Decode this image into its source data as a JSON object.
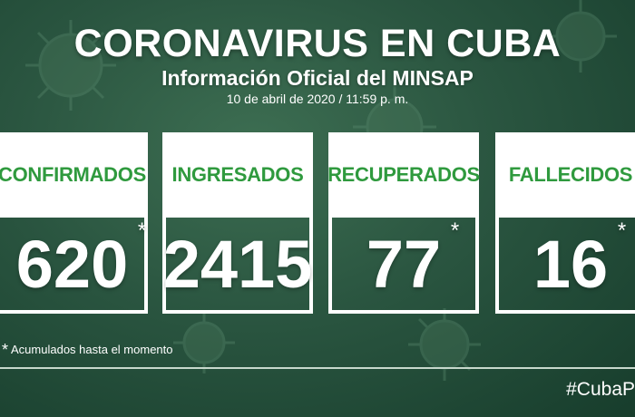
{
  "header": {
    "title": "CORONAVIRUS EN CUBA",
    "subtitle": "Información Oficial del MINSAP",
    "date": "10 de abril de 2020 / 11:59 p. m."
  },
  "stats": [
    {
      "label": "CONFIRMADOS",
      "value": "620",
      "asterisk": "*"
    },
    {
      "label": "INGRESADOS",
      "value": "2415",
      "asterisk": ""
    },
    {
      "label": "RECUPERADOS",
      "value": "77",
      "asterisk": "*"
    },
    {
      "label": "FALLECIDOS",
      "value": "16",
      "asterisk": "*"
    }
  ],
  "footnote": {
    "asterisk": "*",
    "text": "Acumulados hasta el momento"
  },
  "hashtag": "#CubaP",
  "colors": {
    "background": "#2a5540",
    "label_green": "#2f9a3e",
    "card_white": "#ffffff"
  },
  "icons": [
    "virus-icon"
  ]
}
